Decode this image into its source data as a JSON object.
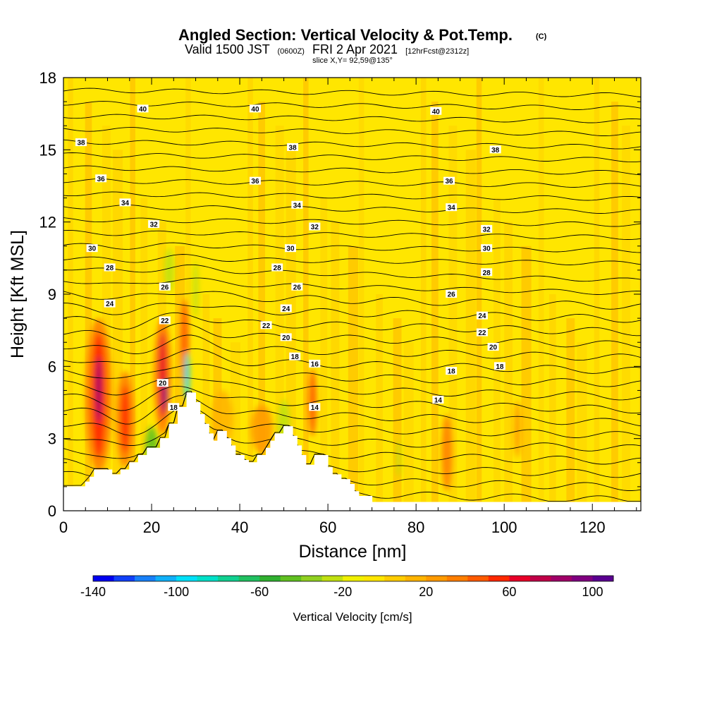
{
  "header": {
    "title": "Angled Section: Vertical Velocity & Pot.Temp.",
    "title_tag": "(C)",
    "valid_pre": "Valid 1500 JST",
    "valid_tz": "(0600Z)",
    "valid_date": "FRI 2 Apr 2021",
    "valid_fcst": "[12hrFcst@2312z]",
    "slice": "slice X,Y= 92,59@135°"
  },
  "colors": {
    "background_field": "#ffe600",
    "terrain": "#ffffff",
    "contour": "#000000",
    "colorbar": [
      "#0000f0",
      "#1040f8",
      "#1880f8",
      "#10b0f8",
      "#00e0f8",
      "#00e0c8",
      "#10d090",
      "#20c060",
      "#30b030",
      "#60c020",
      "#90d020",
      "#c0e010",
      "#f0f000",
      "#ffe600",
      "#ffcc00",
      "#ffb400",
      "#ff9a00",
      "#ff7e00",
      "#ff5a00",
      "#ff2800",
      "#e80028",
      "#c00048",
      "#a00068",
      "#800080",
      "#5a0090"
    ]
  },
  "chart_data": {
    "type": "heatmap",
    "xlabel": "Distance [nm]",
    "ylabel": "Height [Kft MSL]",
    "xlim": [
      0,
      131
    ],
    "ylim": [
      0,
      18
    ],
    "x_ticks": [
      0,
      20,
      40,
      60,
      80,
      100,
      120
    ],
    "y_ticks": [
      0,
      3,
      6,
      9,
      12,
      15,
      18
    ],
    "colorbar": {
      "title": "Vertical Velocity [cm/s]",
      "range": [
        -140,
        110
      ],
      "ticks": [
        -140,
        -100,
        -60,
        -20,
        20,
        60,
        100
      ]
    },
    "terrain_profile": [
      [
        0,
        1.0
      ],
      [
        5,
        1.0
      ],
      [
        5,
        1.2
      ],
      [
        6,
        1.2
      ],
      [
        6,
        1.4
      ],
      [
        7,
        1.4
      ],
      [
        7,
        1.7
      ],
      [
        11,
        1.7
      ],
      [
        11,
        1.5
      ],
      [
        13,
        1.5
      ],
      [
        13,
        1.7
      ],
      [
        15,
        1.7
      ],
      [
        15,
        2.0
      ],
      [
        17,
        2.0
      ],
      [
        17,
        2.3
      ],
      [
        19,
        2.3
      ],
      [
        19,
        2.6
      ],
      [
        22,
        2.6
      ],
      [
        22,
        3.0
      ],
      [
        24,
        3.0
      ],
      [
        24,
        3.6
      ],
      [
        26,
        3.6
      ],
      [
        26,
        4.3
      ],
      [
        28,
        4.3
      ],
      [
        28,
        4.9
      ],
      [
        30,
        4.9
      ],
      [
        30,
        4.5
      ],
      [
        31,
        4.5
      ],
      [
        31,
        4.0
      ],
      [
        32,
        4.0
      ],
      [
        32,
        3.6
      ],
      [
        33,
        3.6
      ],
      [
        33,
        3.2
      ],
      [
        34,
        3.2
      ],
      [
        34,
        2.9
      ],
      [
        35,
        2.9
      ],
      [
        35,
        3.3
      ],
      [
        37,
        3.3
      ],
      [
        37,
        3.0
      ],
      [
        38,
        3.0
      ],
      [
        38,
        2.7
      ],
      [
        39,
        2.7
      ],
      [
        39,
        2.3
      ],
      [
        41,
        2.3
      ],
      [
        41,
        2.1
      ],
      [
        42,
        2.1
      ],
      [
        42,
        2.0
      ],
      [
        44,
        2.0
      ],
      [
        44,
        2.3
      ],
      [
        46,
        2.3
      ],
      [
        46,
        2.6
      ],
      [
        47,
        2.6
      ],
      [
        47,
        2.9
      ],
      [
        48,
        2.9
      ],
      [
        48,
        3.2
      ],
      [
        50,
        3.2
      ],
      [
        50,
        3.5
      ],
      [
        52,
        3.5
      ],
      [
        52,
        3.1
      ],
      [
        53,
        3.1
      ],
      [
        53,
        2.7
      ],
      [
        54,
        2.7
      ],
      [
        54,
        2.3
      ],
      [
        55,
        2.3
      ],
      [
        55,
        1.9
      ],
      [
        57,
        1.9
      ],
      [
        57,
        2.3
      ],
      [
        60,
        2.3
      ],
      [
        60,
        1.8
      ],
      [
        61,
        1.8
      ],
      [
        61,
        1.5
      ],
      [
        63,
        1.5
      ],
      [
        63,
        1.3
      ],
      [
        65,
        1.3
      ],
      [
        65,
        1.1
      ],
      [
        66,
        1.1
      ],
      [
        66,
        0.8
      ],
      [
        67,
        0.8
      ],
      [
        67,
        0.6
      ],
      [
        70,
        0.6
      ],
      [
        70,
        0.35
      ],
      [
        131,
        0.35
      ]
    ],
    "theta_contour_labels": [
      {
        "text": "40",
        "x": 18,
        "y": 16.7
      },
      {
        "text": "40",
        "x": 43.5,
        "y": 16.7
      },
      {
        "text": "40",
        "x": 84.5,
        "y": 16.6
      },
      {
        "text": "38",
        "x": 4,
        "y": 15.3
      },
      {
        "text": "38",
        "x": 52,
        "y": 15.1
      },
      {
        "text": "38",
        "x": 98,
        "y": 15.0
      },
      {
        "text": "36",
        "x": 8.5,
        "y": 13.8
      },
      {
        "text": "36",
        "x": 43.5,
        "y": 13.7
      },
      {
        "text": "36",
        "x": 87.5,
        "y": 13.7
      },
      {
        "text": "34",
        "x": 14,
        "y": 12.8
      },
      {
        "text": "34",
        "x": 53,
        "y": 12.7
      },
      {
        "text": "34",
        "x": 88,
        "y": 12.6
      },
      {
        "text": "32",
        "x": 20.5,
        "y": 11.9
      },
      {
        "text": "32",
        "x": 57,
        "y": 11.8
      },
      {
        "text": "32",
        "x": 96,
        "y": 11.7
      },
      {
        "text": "30",
        "x": 6.5,
        "y": 10.9
      },
      {
        "text": "30",
        "x": 51.5,
        "y": 10.9
      },
      {
        "text": "30",
        "x": 96,
        "y": 10.9
      },
      {
        "text": "28",
        "x": 10.5,
        "y": 10.1
      },
      {
        "text": "28",
        "x": 48.5,
        "y": 10.1
      },
      {
        "text": "28",
        "x": 96,
        "y": 9.9
      },
      {
        "text": "26",
        "x": 23,
        "y": 9.3
      },
      {
        "text": "26",
        "x": 53,
        "y": 9.3
      },
      {
        "text": "26",
        "x": 88,
        "y": 9.0
      },
      {
        "text": "24",
        "x": 10.5,
        "y": 8.6
      },
      {
        "text": "24",
        "x": 50.5,
        "y": 8.4
      },
      {
        "text": "24",
        "x": 95,
        "y": 8.1
      },
      {
        "text": "22",
        "x": 23,
        "y": 7.9
      },
      {
        "text": "22",
        "x": 46,
        "y": 7.7
      },
      {
        "text": "22",
        "x": 95,
        "y": 7.4
      },
      {
        "text": "20",
        "x": 50.5,
        "y": 7.2
      },
      {
        "text": "20",
        "x": 97.5,
        "y": 6.8
      },
      {
        "text": "18",
        "x": 52.5,
        "y": 6.4
      },
      {
        "text": "18",
        "x": 88,
        "y": 5.8
      },
      {
        "text": "18",
        "x": 99,
        "y": 6.0
      },
      {
        "text": "16",
        "x": 57,
        "y": 6.1
      },
      {
        "text": "14",
        "x": 85,
        "y": 4.6
      },
      {
        "text": "14",
        "x": 57,
        "y": 4.3
      },
      {
        "text": "20",
        "x": 22.5,
        "y": 5.3
      },
      {
        "text": "18",
        "x": 25,
        "y": 4.3
      }
    ]
  }
}
